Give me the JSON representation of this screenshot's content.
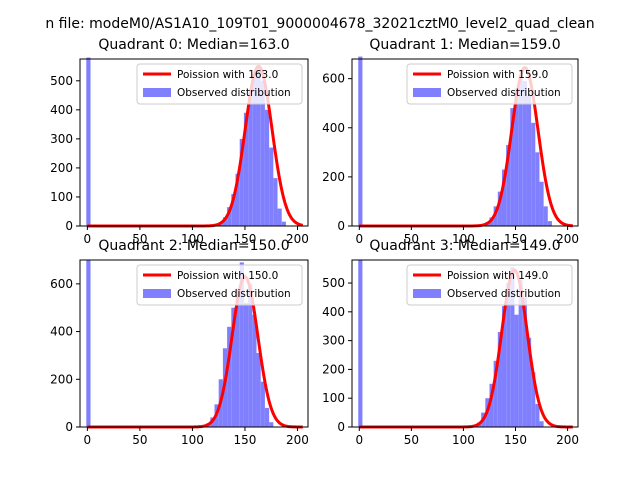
{
  "figure_title": "n file: modeM0/AS1A10_109T01_9000004678_32021cztM0_level2_quad_clean",
  "colors": {
    "histogram": "#8080ff",
    "poisson_line": "#ff0000",
    "axis": "#000000",
    "background": "#ffffff"
  },
  "chart_data": [
    {
      "type": "histogram",
      "title": "Quadrant 0: Median=163.0",
      "xlim": [
        -7,
        210
      ],
      "ylim": [
        0,
        575
      ],
      "xticks": [
        "0",
        "50",
        "100",
        "150",
        "200"
      ],
      "yticks": [
        "0",
        "100",
        "200",
        "300",
        "400",
        "500"
      ],
      "legend_position": "top-right",
      "legend": [
        "Poission with 163.0",
        "Observed distribution"
      ],
      "poisson_mean": 163,
      "series": [
        {
          "name": "Observed distribution",
          "kind": "bars",
          "bin_centers": [
            1,
            123,
            127,
            131,
            135,
            139,
            143,
            147,
            151,
            155,
            159,
            163,
            167,
            171,
            175,
            179,
            183,
            187
          ],
          "values": [
            580,
            5,
            12,
            30,
            65,
            110,
            180,
            300,
            390,
            460,
            515,
            545,
            500,
            400,
            270,
            165,
            60,
            15
          ]
        },
        {
          "name": "Poission with 163.0",
          "kind": "line",
          "peak": 550
        }
      ]
    },
    {
      "type": "histogram",
      "title": "Quadrant 1: Median=159.0",
      "xlim": [
        -7,
        210
      ],
      "ylim": [
        0,
        680
      ],
      "xticks": [
        "0",
        "50",
        "100",
        "150",
        "200"
      ],
      "yticks": [
        "0",
        "200",
        "400",
        "600"
      ],
      "legend_position": "top-right",
      "legend": [
        "Poission with 159.0",
        "Observed distribution"
      ],
      "poisson_mean": 159,
      "series": [
        {
          "name": "Observed distribution",
          "kind": "bars",
          "bin_centers": [
            1,
            119,
            123,
            127,
            131,
            135,
            139,
            143,
            147,
            151,
            155,
            159,
            163,
            167,
            171,
            175,
            179,
            183
          ],
          "values": [
            690,
            5,
            15,
            35,
            80,
            140,
            230,
            330,
            480,
            560,
            600,
            590,
            530,
            420,
            300,
            180,
            80,
            20
          ]
        },
        {
          "name": "Poission with 159.0",
          "kind": "line",
          "peak": 645
        }
      ]
    },
    {
      "type": "histogram",
      "title": "Quadrant 2: Median=150.0",
      "xlim": [
        -7,
        210
      ],
      "ylim": [
        0,
        700
      ],
      "xticks": [
        "0",
        "50",
        "100",
        "150",
        "200"
      ],
      "yticks": [
        "0",
        "200",
        "400",
        "600"
      ],
      "legend_position": "top-right",
      "legend": [
        "Poission with 150.0",
        "Observed distribution"
      ],
      "poisson_mean": 150,
      "series": [
        {
          "name": "Observed distribution",
          "kind": "bars",
          "bin_centers": [
            1,
            111,
            115,
            119,
            123,
            127,
            131,
            135,
            139,
            143,
            147,
            151,
            155,
            159,
            163,
            167,
            171,
            175
          ],
          "values": [
            700,
            5,
            15,
            40,
            95,
            200,
            330,
            420,
            500,
            580,
            690,
            520,
            600,
            470,
            310,
            190,
            80,
            20
          ]
        },
        {
          "name": "Poission with 150.0",
          "kind": "line",
          "peak": 630
        }
      ]
    },
    {
      "type": "histogram",
      "title": "Quadrant 3: Median=149.0",
      "xlim": [
        -7,
        210
      ],
      "ylim": [
        0,
        580
      ],
      "xticks": [
        "0",
        "50",
        "100",
        "150",
        "200"
      ],
      "yticks": [
        "0",
        "100",
        "200",
        "300",
        "400",
        "500"
      ],
      "legend_position": "top-right",
      "legend": [
        "Poission with 149.0",
        "Observed distribution"
      ],
      "poisson_mean": 149,
      "series": [
        {
          "name": "Observed distribution",
          "kind": "bars",
          "bin_centers": [
            1,
            111,
            115,
            119,
            123,
            127,
            131,
            135,
            139,
            143,
            147,
            151,
            155,
            159,
            163,
            167,
            171,
            175
          ],
          "values": [
            580,
            5,
            15,
            50,
            100,
            150,
            230,
            330,
            420,
            500,
            555,
            390,
            510,
            450,
            310,
            190,
            80,
            20
          ]
        },
        {
          "name": "Poission with 149.0",
          "kind": "line",
          "peak": 545
        }
      ]
    }
  ]
}
